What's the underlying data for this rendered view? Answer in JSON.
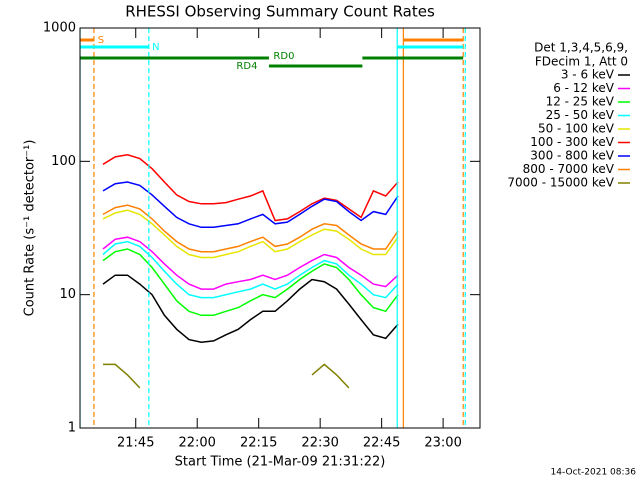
{
  "chart_data": {
    "type": "line",
    "title": "RHESSI Observing Summary Count Rates",
    "xlabel": "Start Time (21-Mar-09 21:31:22)",
    "ylabel": "Count Rate (s⁻¹ detector⁻¹)",
    "footer": "14-Oct-2021 08:36",
    "legend_header": [
      "Det 1,3,4,5,6,9,",
      "FDecim 1, Att 0"
    ],
    "ylog": true,
    "xlim": [
      1291.4,
      1389
    ],
    "ylim": [
      1,
      1000
    ],
    "yticks": [
      1,
      10,
      100,
      1000
    ],
    "xticks": [
      {
        "value": 1305,
        "label": "21:45"
      },
      {
        "value": 1320,
        "label": "22:00"
      },
      {
        "value": 1335,
        "label": "22:15"
      },
      {
        "value": 1350,
        "label": "22:30"
      },
      {
        "value": 1365,
        "label": "22:45"
      },
      {
        "value": 1380,
        "label": "23:00"
      }
    ],
    "x": [
      1297,
      1300,
      1303,
      1306,
      1309,
      1312,
      1315,
      1318,
      1321,
      1324,
      1327,
      1330,
      1333,
      1336,
      1339,
      1342,
      1345,
      1348,
      1351,
      1354,
      1357,
      1360,
      1363,
      1366,
      1369
    ],
    "series": [
      {
        "name": "3 - 6 keV",
        "color": "#000000",
        "values": [
          12,
          14,
          14,
          12,
          10,
          7,
          5.5,
          4.6,
          4.4,
          4.5,
          5,
          5.5,
          6.5,
          7.5,
          7.5,
          9,
          11,
          13,
          12.5,
          11,
          8.5,
          6.5,
          5,
          4.7,
          6
        ]
      },
      {
        "name": "6 - 12 keV",
        "color": "#ff00ff",
        "values": [
          22,
          26,
          27,
          25,
          21,
          17,
          14,
          12,
          11,
          11,
          12,
          12.5,
          13,
          14,
          13,
          14,
          16,
          18,
          20,
          19,
          16,
          14,
          12,
          11.5,
          14
        ]
      },
      {
        "name": "12 - 25 keV",
        "color": "#00ff00",
        "values": [
          18,
          21,
          22,
          20,
          16,
          12,
          9,
          7.5,
          7,
          7,
          7.5,
          8,
          9,
          10,
          9.5,
          11,
          13,
          15,
          17,
          16,
          13,
          10,
          8,
          7.5,
          10
        ]
      },
      {
        "name": "25 - 50 keV",
        "color": "#00ffff",
        "values": [
          20,
          24,
          25,
          23,
          19,
          15,
          12,
          10,
          9.5,
          9.5,
          10,
          10.5,
          11,
          12,
          11,
          12,
          14,
          16,
          18,
          17,
          14,
          12,
          10,
          9.5,
          12
        ]
      },
      {
        "name": "50 - 100 keV",
        "color": "#e6e600",
        "values": [
          37,
          41,
          43,
          40,
          34,
          28,
          23,
          20,
          19,
          19,
          20,
          21,
          23,
          25,
          21,
          22,
          25,
          28,
          31,
          30,
          26,
          22,
          20,
          20,
          27
        ]
      },
      {
        "name": "100 - 300 keV",
        "color": "#ff0000",
        "values": [
          95,
          108,
          112,
          105,
          88,
          70,
          56,
          50,
          48,
          48,
          49,
          52,
          55,
          60,
          36,
          37,
          42,
          48,
          53,
          51,
          44,
          38,
          60,
          55,
          70
        ]
      },
      {
        "name": "300 - 800 keV",
        "color": "#0000ff",
        "values": [
          60,
          68,
          70,
          66,
          56,
          46,
          38,
          34,
          32,
          32,
          33,
          34,
          37,
          40,
          34,
          35,
          40,
          46,
          52,
          50,
          42,
          36,
          42,
          40,
          55
        ]
      },
      {
        "name": "800 - 7000 keV",
        "color": "#ff8000",
        "values": [
          40,
          45,
          47,
          44,
          37,
          30,
          25,
          22,
          21,
          21,
          22,
          23,
          25,
          27,
          23,
          24,
          27,
          31,
          34,
          33,
          28,
          24,
          22,
          22,
          30
        ]
      },
      {
        "name": "7000 - 15000 keV",
        "color": "#808000",
        "values": [
          3,
          3,
          2.5,
          2,
          null,
          null,
          null,
          null,
          null,
          null,
          null,
          null,
          null,
          null,
          null,
          null,
          null,
          2.5,
          3,
          2.5,
          2,
          null,
          null,
          null,
          null
        ]
      }
    ],
    "flags": [
      {
        "label": "S",
        "color": "#ff8000",
        "segments": [
          [
            1291.4,
            1294.8
          ],
          [
            1370.3,
            1384.9
          ]
        ]
      },
      {
        "label": "N",
        "color": "#00ffff",
        "segments": [
          [
            1291.4,
            1308.2
          ],
          [
            1368.8,
            1384.9
          ]
        ]
      },
      {
        "label": "RD0",
        "color": "#008000",
        "segments": [
          [
            1291.4,
            1337.5
          ],
          [
            1360.3,
            1384.9
          ]
        ]
      },
      {
        "label": "RD4",
        "color": "#008000",
        "segments": [
          [
            1337.5,
            1360.3
          ]
        ]
      }
    ],
    "events": [
      {
        "x": 1291.4,
        "color": "#00ffff",
        "style": "solid"
      },
      {
        "x": 1294.8,
        "color": "#ff8000",
        "style": "dashed"
      },
      {
        "x": 1308.2,
        "color": "#00ffff",
        "style": "dashed"
      },
      {
        "x": 1368.8,
        "color": "#00ffff",
        "style": "solid"
      },
      {
        "x": 1370.3,
        "color": "#ff8000",
        "style": "solid"
      },
      {
        "x": 1384.9,
        "color": "#ff8000",
        "style": "dashed"
      },
      {
        "x": 1385.4,
        "color": "#00ffff",
        "style": "dashed"
      }
    ]
  }
}
